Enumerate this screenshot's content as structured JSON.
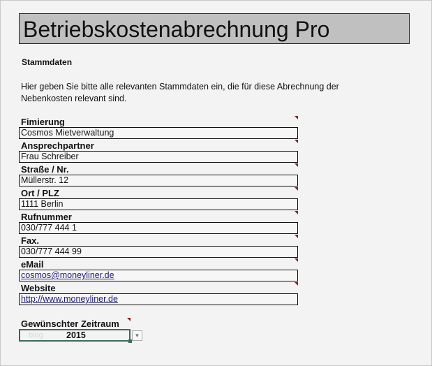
{
  "title": "Betriebskostenabrechnung Pro",
  "section_heading": "Stammdaten",
  "intro": "Hier geben Sie bitte alle relevanten Stammdaten ein, die für diese Abrechnung der Nebenkosten relevant sind.",
  "fields": [
    {
      "label": "Fimierung",
      "value": "Cosmos Mietverwaltung"
    },
    {
      "label": "Ansprechpartner",
      "value": "Frau Schreiber"
    },
    {
      "label": "Straße / Nr.",
      "value": "Müllerstr. 12"
    },
    {
      "label": "Ort / PLZ",
      "value": "1111 Berlin"
    },
    {
      "label": "Rufnummer",
      "value": "030/777 444 1"
    },
    {
      "label": "Fax.",
      "value": "030/777 444 99"
    },
    {
      "label": "eMail",
      "value": "cosmos@moneyliner.de"
    },
    {
      "label": "Website",
      "value": "http://www.moneyliner.de"
    }
  ],
  "period": {
    "label": "Gewünschter Zeitraum",
    "value": "2015",
    "watermark": "blog"
  },
  "colors": {
    "title_bg": "#c0c0c0",
    "comment_marker": "#8b1a1a",
    "selection_border": "#3b6b56",
    "link": "#1a1a7a"
  }
}
